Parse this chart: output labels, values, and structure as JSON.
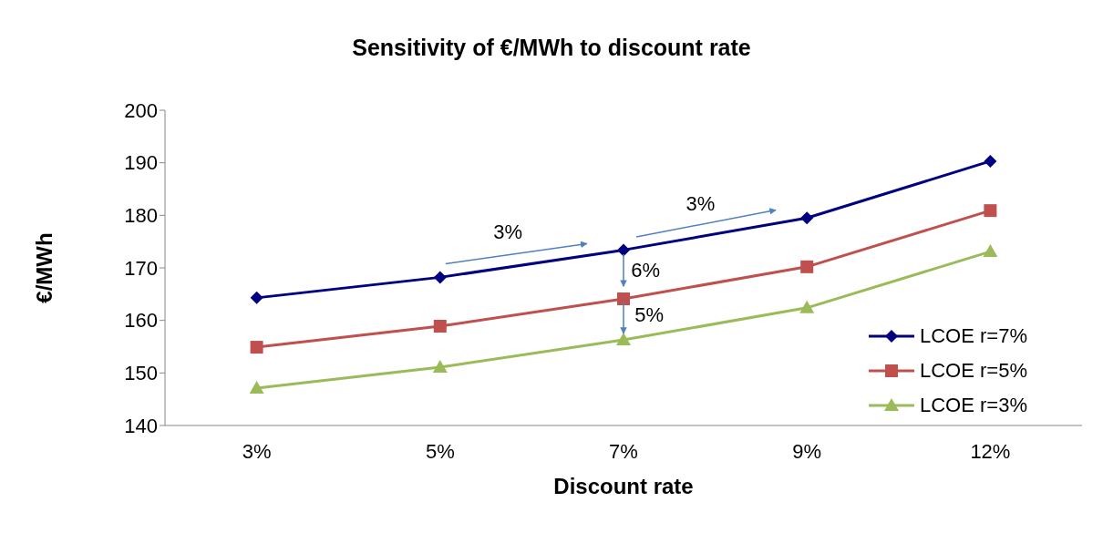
{
  "chart_data": {
    "type": "line",
    "title": "Sensitivity of €/MWh to discount rate",
    "xlabel": "Discount rate",
    "ylabel": "€/MWh",
    "categories": [
      "3%",
      "5%",
      "7%",
      "9%",
      "12%"
    ],
    "series": [
      {
        "name": "LCOE r=7%",
        "color": "#000080",
        "marker": "diamond",
        "values": [
          164.3,
          168.2,
          173.4,
          179.5,
          190.3
        ]
      },
      {
        "name": "LCOE r=5%",
        "color": "#c0504d",
        "marker": "square",
        "values": [
          154.9,
          158.9,
          164.1,
          170.2,
          180.9
        ]
      },
      {
        "name": "LCOE r=3%",
        "color": "#9bbb59",
        "marker": "triangle",
        "values": [
          147.1,
          151.1,
          156.3,
          162.4,
          173.1
        ]
      }
    ],
    "ylim": [
      140,
      200
    ],
    "yticks": [
      140,
      150,
      160,
      170,
      180,
      190,
      200
    ],
    "grid": false,
    "legend": "bottom right",
    "line_style": "solid",
    "annotations": [
      "3%",
      "3%",
      "6%",
      "5%"
    ]
  }
}
